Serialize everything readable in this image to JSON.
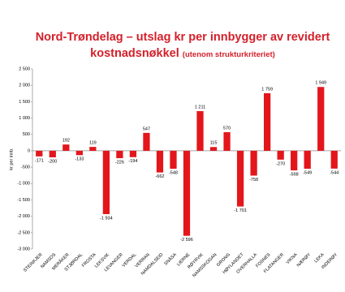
{
  "chart_data": {
    "type": "bar",
    "title": "Nord-Trøndelag – utslag kr per innbygger av revidert kostnadsnøkkel",
    "subtitle": "(utenom strukturkriteriet)",
    "y_label": "kr per innb.",
    "categories": [
      "STEINKJER",
      "NAMSOS",
      "MERÅKER",
      "STJØRDAL",
      "FROSTA",
      "LEKSVIK",
      "LEVANGER",
      "VERDAL",
      "VERRAN",
      "NAMDALSEID",
      "SNÅSA",
      "LIERNE",
      "RØYRVIK",
      "NAMSSKOGAN",
      "GRONG",
      "HØYLANDET",
      "OVERHALLA",
      "FOSNES",
      "FLATANGER",
      "VIKNA",
      "NÆRØY",
      "LEKA",
      "INDERØY"
    ],
    "values": [
      -171,
      -200,
      192,
      -133,
      119,
      -1934,
      -226,
      -194,
      547,
      -662,
      -548,
      -2596,
      1211,
      115,
      570,
      -1701,
      -758,
      1759,
      -270,
      -598,
      -549,
      1949,
      -544
    ],
    "value_labels": [
      "-171",
      "-200",
      "192",
      "-133",
      "119",
      "-1 934",
      "-226",
      "-194",
      "547",
      "-662",
      "-548",
      "-2 596",
      "1 211",
      "115",
      "570",
      "-1 701",
      "-758",
      "1 759",
      "-270",
      "-598",
      "-549",
      "1 949",
      "-544"
    ],
    "color": "#e3161c",
    "ylim": [
      -3000,
      2500
    ],
    "yticks": [
      -3000,
      -2500,
      -2000,
      -1500,
      -1000,
      -500,
      0,
      500,
      1000,
      1500,
      2000,
      2500
    ],
    "ytick_labels_src": null
  }
}
